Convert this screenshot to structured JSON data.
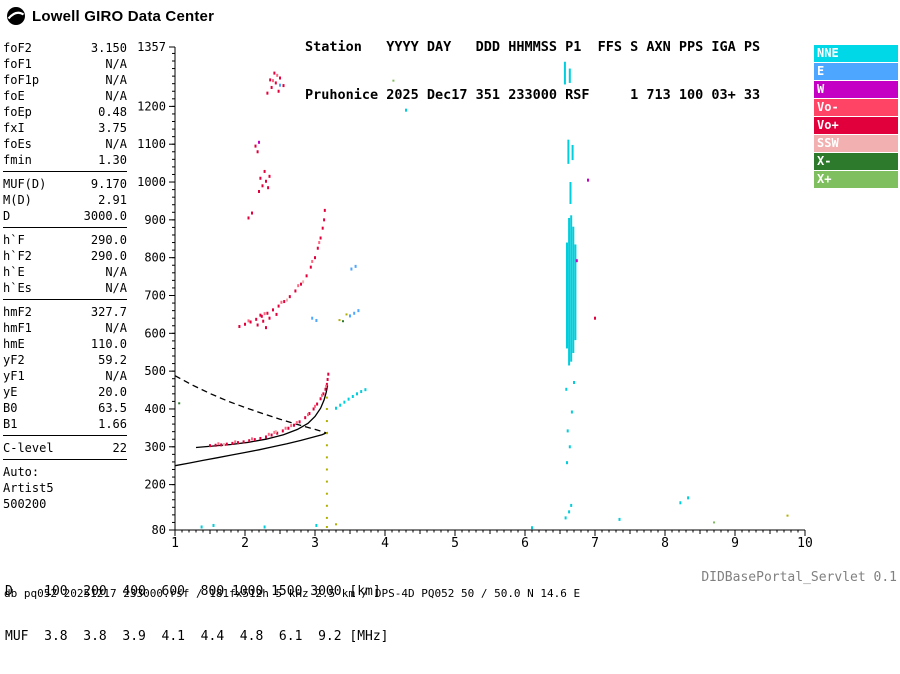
{
  "header": {
    "logo_text": "Lowell GIRO Data Center",
    "station_line1": "Station   YYYY DAY   DDD HHMMSS P1  FFS S AXN PPS IGA PS",
    "station_line2": "Pruhonice 2025 Dec17 351 233000 RSF     1 713 100 03+ 33"
  },
  "params": {
    "sections": [
      {
        "rows": [
          {
            "label": "foF2",
            "value": "3.150"
          },
          {
            "label": "foF1",
            "value": "N/A"
          },
          {
            "label": "foF1p",
            "value": "N/A"
          },
          {
            "label": "foE",
            "value": "N/A"
          },
          {
            "label": "foEp",
            "value": "0.48"
          },
          {
            "label": "fxI",
            "value": "3.75"
          },
          {
            "label": "foEs",
            "value": "N/A"
          },
          {
            "label": "fmin",
            "value": "1.30"
          }
        ]
      },
      {
        "rows": [
          {
            "label": "MUF(D)",
            "value": "9.170"
          },
          {
            "label": "M(D)",
            "value": "2.91"
          },
          {
            "label": "D",
            "value": "3000.0"
          }
        ]
      },
      {
        "rows": [
          {
            "label": "h`F",
            "value": "290.0"
          },
          {
            "label": "h`F2",
            "value": "290.0"
          },
          {
            "label": "h`E",
            "value": "N/A"
          },
          {
            "label": "h`Es",
            "value": "N/A"
          }
        ]
      },
      {
        "rows": [
          {
            "label": "hmF2",
            "value": "327.7"
          },
          {
            "label": "hmF1",
            "value": "N/A"
          },
          {
            "label": "hmE",
            "value": "110.0"
          },
          {
            "label": "yF2",
            "value": "59.2"
          },
          {
            "label": "yF1",
            "value": "N/A"
          },
          {
            "label": "yE",
            "value": "20.0"
          },
          {
            "label": "B0",
            "value": "63.5"
          },
          {
            "label": "B1",
            "value": "1.66"
          }
        ]
      },
      {
        "rows": [
          {
            "label": "C-level",
            "value": "22"
          }
        ]
      },
      {
        "no_divider": true,
        "rows": [
          {
            "label": "Auto:",
            "value": ""
          },
          {
            "label": "Artist5",
            "value": ""
          },
          {
            "label": "500200",
            "value": ""
          }
        ]
      }
    ]
  },
  "legend": [
    {
      "label": "NNE",
      "color": "#00D8E8",
      "text_color": "#ffffff"
    },
    {
      "label": "E",
      "color": "#4DA6FF",
      "text_color": "#ffffff"
    },
    {
      "label": "W",
      "color": "#C400C4",
      "text_color": "#ffffff"
    },
    {
      "label": "Vo-",
      "color": "#FF4466",
      "text_color": "#ffffff"
    },
    {
      "label": "Vo+",
      "color": "#E1003C",
      "text_color": "#ffffff"
    },
    {
      "label": "SSW",
      "color": "#F2B0B0",
      "text_color": "#ffffff"
    },
    {
      "label": "X-",
      "color": "#2D7A2D",
      "text_color": "#ffffff"
    },
    {
      "label": "X+",
      "color": "#7FBF5F",
      "text_color": "#ffffff"
    }
  ],
  "scales": {
    "d_row": {
      "label": "D",
      "values": [
        "100",
        "200",
        "400",
        "600",
        "800",
        "1000",
        "1500",
        "3000"
      ],
      "unit": "[km]"
    },
    "muf_row": {
      "label": "MUF",
      "values": [
        "3.8",
        "3.8",
        "3.9",
        "4.1",
        "4.4",
        "4.8",
        "6.1",
        "9.2"
      ],
      "unit": "[MHz]"
    }
  },
  "footer": {
    "db_line": "db pq052 20251217 233000.rsf / 181fx512h 5 kHz 2.5 km / DPS-4D PQ052 50 / 50.0 N 14.6 E",
    "servlet": "DIDBasePortal_Servlet 0.1"
  },
  "chart_data": {
    "type": "scatter",
    "title": "",
    "xlabel": "[MHz]",
    "ylabel": "[km]",
    "xlim": [
      1,
      10
    ],
    "ylim": [
      80,
      1357
    ],
    "x_ticks": [
      1,
      2,
      3,
      4,
      5,
      6,
      7,
      8,
      9,
      10
    ],
    "y_ticks": [
      80,
      200,
      300,
      400,
      500,
      600,
      700,
      800,
      900,
      1000,
      1100,
      1200,
      1357
    ],
    "grid": false,
    "legend_position": "top-right",
    "series": [
      {
        "name": "Vo+",
        "color": "#E1003C",
        "dot": [
          2,
          3
        ],
        "points": [
          [
            1.5,
            303
          ],
          [
            1.58,
            304
          ],
          [
            1.66,
            305
          ],
          [
            1.74,
            307
          ],
          [
            1.82,
            309
          ],
          [
            1.9,
            311
          ],
          [
            1.98,
            313
          ],
          [
            2.06,
            316
          ],
          [
            2.14,
            319
          ],
          [
            2.22,
            322
          ],
          [
            2.3,
            326
          ],
          [
            2.38,
            331
          ],
          [
            2.46,
            336
          ],
          [
            2.54,
            342
          ],
          [
            2.62,
            349
          ],
          [
            2.7,
            357
          ],
          [
            2.78,
            366
          ],
          [
            2.86,
            377
          ],
          [
            2.92,
            388
          ],
          [
            2.98,
            400
          ],
          [
            3.03,
            413
          ],
          [
            3.08,
            427
          ],
          [
            3.12,
            440
          ],
          [
            3.15,
            452
          ],
          [
            3.17,
            465
          ],
          [
            3.18,
            478
          ],
          [
            3.19,
            492
          ],
          [
            1.92,
            618
          ],
          [
            2.0,
            624
          ],
          [
            2.08,
            630
          ],
          [
            2.16,
            637
          ],
          [
            2.24,
            645
          ],
          [
            2.32,
            653
          ],
          [
            2.4,
            662
          ],
          [
            2.48,
            672
          ],
          [
            2.56,
            684
          ],
          [
            2.64,
            697
          ],
          [
            2.72,
            712
          ],
          [
            2.8,
            730
          ],
          [
            2.88,
            752
          ],
          [
            2.94,
            775
          ],
          [
            3.0,
            800
          ],
          [
            3.04,
            825
          ],
          [
            3.08,
            852
          ],
          [
            3.11,
            878
          ],
          [
            3.13,
            900
          ],
          [
            3.14,
            925
          ],
          [
            2.18,
            622
          ],
          [
            2.26,
            632
          ],
          [
            2.35,
            640
          ],
          [
            2.3,
            615
          ],
          [
            2.45,
            650
          ],
          [
            2.22,
            648
          ],
          [
            2.2,
            975
          ],
          [
            2.25,
            990
          ],
          [
            2.3,
            1002
          ],
          [
            2.35,
            1015
          ],
          [
            2.28,
            1028
          ],
          [
            2.22,
            1010
          ],
          [
            2.33,
            985
          ],
          [
            2.32,
            1235
          ],
          [
            2.38,
            1250
          ],
          [
            2.44,
            1262
          ],
          [
            2.5,
            1275
          ],
          [
            2.42,
            1288
          ],
          [
            2.36,
            1270
          ],
          [
            2.55,
            1255
          ],
          [
            2.48,
            1240
          ],
          [
            2.15,
            1095
          ],
          [
            2.18,
            1080
          ],
          [
            2.05,
            905
          ],
          [
            2.1,
            918
          ],
          [
            7.0,
            640
          ]
        ]
      },
      {
        "name": "Vo-",
        "color": "#FF6680",
        "dot": [
          2,
          3
        ],
        "points": [
          [
            1.62,
            308
          ],
          [
            1.86,
            313
          ],
          [
            2.1,
            321
          ],
          [
            2.34,
            333
          ],
          [
            2.58,
            349
          ],
          [
            2.74,
            364
          ],
          [
            2.9,
            385
          ],
          [
            3.0,
            407
          ],
          [
            3.1,
            436
          ],
          [
            3.16,
            460
          ],
          [
            2.42,
            338
          ],
          [
            2.66,
            356
          ],
          [
            2.05,
            633
          ],
          [
            2.28,
            652
          ],
          [
            2.52,
            682
          ],
          [
            2.76,
            726
          ],
          [
            2.96,
            790
          ],
          [
            3.06,
            840
          ],
          [
            2.4,
            1268
          ],
          [
            2.46,
            1282
          ]
        ]
      },
      {
        "name": "NNE",
        "color": "#00CEDC",
        "dot": [
          2,
          3
        ],
        "points": [
          [
            3.3,
            402
          ],
          [
            3.36,
            410
          ],
          [
            3.42,
            418
          ],
          [
            3.48,
            426
          ],
          [
            3.54,
            433
          ],
          [
            3.6,
            440
          ],
          [
            3.66,
            446
          ],
          [
            3.72,
            451
          ],
          [
            1.38,
            88
          ],
          [
            1.55,
            92
          ],
          [
            2.28,
            88
          ],
          [
            3.02,
            92
          ],
          [
            6.1,
            86
          ],
          [
            6.58,
            112
          ],
          [
            6.63,
            128
          ],
          [
            6.66,
            145
          ],
          [
            7.35,
            108
          ],
          [
            8.22,
            152
          ],
          [
            8.33,
            165
          ],
          [
            4.3,
            1190
          ],
          [
            6.6,
            258
          ],
          [
            6.64,
            300
          ],
          [
            6.61,
            342
          ],
          [
            6.67,
            392
          ],
          [
            6.59,
            452
          ],
          [
            6.7,
            470
          ]
        ]
      },
      {
        "name": "E",
        "color": "#4DA6FF",
        "dot": [
          2,
          3
        ],
        "points": [
          [
            3.5,
            646
          ],
          [
            3.56,
            653
          ],
          [
            3.62,
            660
          ],
          [
            3.52,
            770
          ],
          [
            3.58,
            777
          ],
          [
            2.96,
            640
          ],
          [
            3.02,
            634
          ],
          [
            2.5,
            1256
          ]
        ]
      },
      {
        "name": "W",
        "color": "#C400C4",
        "dot": [
          2,
          3
        ],
        "points": [
          [
            6.9,
            1005
          ],
          [
            6.74,
            792
          ],
          [
            2.2,
            1105
          ]
        ]
      },
      {
        "name": "SSW",
        "color": "#F2B0B0",
        "dot": [
          2,
          3
        ],
        "points": [
          [
            1.7,
            306
          ],
          [
            2.44,
            340
          ],
          [
            2.6,
            688
          ],
          [
            2.83,
            736
          ]
        ]
      },
      {
        "name": "X-",
        "color": "#2D7A2D",
        "dot": [
          2,
          2
        ],
        "points": [
          [
            1.06,
            415
          ],
          [
            3.4,
            632
          ]
        ]
      },
      {
        "name": "X+",
        "color": "#7FBF5F",
        "dot": [
          2,
          2
        ],
        "points": [
          [
            4.12,
            1268
          ],
          [
            8.7,
            100
          ]
        ]
      },
      {
        "name": "noise",
        "color": "#B0B000",
        "dot": [
          2,
          2
        ],
        "points": [
          [
            3.17,
            430
          ],
          [
            3.17,
            400
          ],
          [
            3.17,
            368
          ],
          [
            3.17,
            336
          ],
          [
            3.17,
            304
          ],
          [
            3.17,
            272
          ],
          [
            3.17,
            240
          ],
          [
            3.17,
            208
          ],
          [
            3.17,
            176
          ],
          [
            3.17,
            144
          ],
          [
            3.17,
            112
          ],
          [
            3.17,
            88
          ],
          [
            3.3,
            95
          ],
          [
            3.35,
            635
          ],
          [
            3.45,
            650
          ],
          [
            9.75,
            118
          ]
        ]
      }
    ],
    "segments": [
      {
        "x": 6.6,
        "from": 560,
        "to": 840,
        "color": "#00CEDC"
      },
      {
        "x": 6.63,
        "from": 515,
        "to": 905,
        "color": "#00CEDC"
      },
      {
        "x": 6.66,
        "from": 525,
        "to": 912,
        "color": "#00CEDC"
      },
      {
        "x": 6.69,
        "from": 548,
        "to": 882,
        "color": "#00CEDC"
      },
      {
        "x": 6.72,
        "from": 582,
        "to": 835,
        "color": "#00CEDC"
      },
      {
        "x": 6.65,
        "from": 942,
        "to": 1000,
        "color": "#00CEDC"
      },
      {
        "x": 6.62,
        "from": 1048,
        "to": 1112,
        "color": "#00CEDC"
      },
      {
        "x": 6.68,
        "from": 1058,
        "to": 1098,
        "color": "#00CEDC"
      },
      {
        "x": 6.57,
        "from": 1258,
        "to": 1318,
        "color": "#00CEDC"
      },
      {
        "x": 6.64,
        "from": 1262,
        "to": 1300,
        "color": "#00CEDC"
      }
    ],
    "lines": [
      {
        "name": "true-height-profile",
        "style": "solid",
        "color": "#000000",
        "points": [
          [
            1.0,
            250
          ],
          [
            1.2,
            257
          ],
          [
            1.4,
            264
          ],
          [
            1.6,
            271
          ],
          [
            1.8,
            278
          ],
          [
            2.0,
            285
          ],
          [
            2.2,
            292
          ],
          [
            2.4,
            300
          ],
          [
            2.6,
            308
          ],
          [
            2.8,
            317
          ],
          [
            3.0,
            327
          ],
          [
            3.1,
            332
          ],
          [
            3.18,
            338
          ]
        ]
      },
      {
        "name": "fitted-f-trace",
        "style": "solid",
        "color": "#000000",
        "points": [
          [
            1.3,
            298
          ],
          [
            1.55,
            302
          ],
          [
            1.8,
            306
          ],
          [
            2.05,
            312
          ],
          [
            2.3,
            320
          ],
          [
            2.55,
            332
          ],
          [
            2.75,
            346
          ],
          [
            2.9,
            362
          ],
          [
            3.0,
            380
          ],
          [
            3.08,
            402
          ],
          [
            3.13,
            424
          ],
          [
            3.16,
            444
          ],
          [
            3.18,
            462
          ]
        ]
      },
      {
        "name": "extrapolated-profile",
        "style": "dashed",
        "color": "#000000",
        "points": [
          [
            1.0,
            488
          ],
          [
            1.25,
            463
          ],
          [
            1.5,
            441
          ],
          [
            1.75,
            421
          ],
          [
            2.0,
            404
          ],
          [
            2.25,
            388
          ],
          [
            2.5,
            373
          ],
          [
            2.75,
            359
          ],
          [
            3.0,
            346
          ],
          [
            3.18,
            336
          ]
        ]
      }
    ]
  }
}
